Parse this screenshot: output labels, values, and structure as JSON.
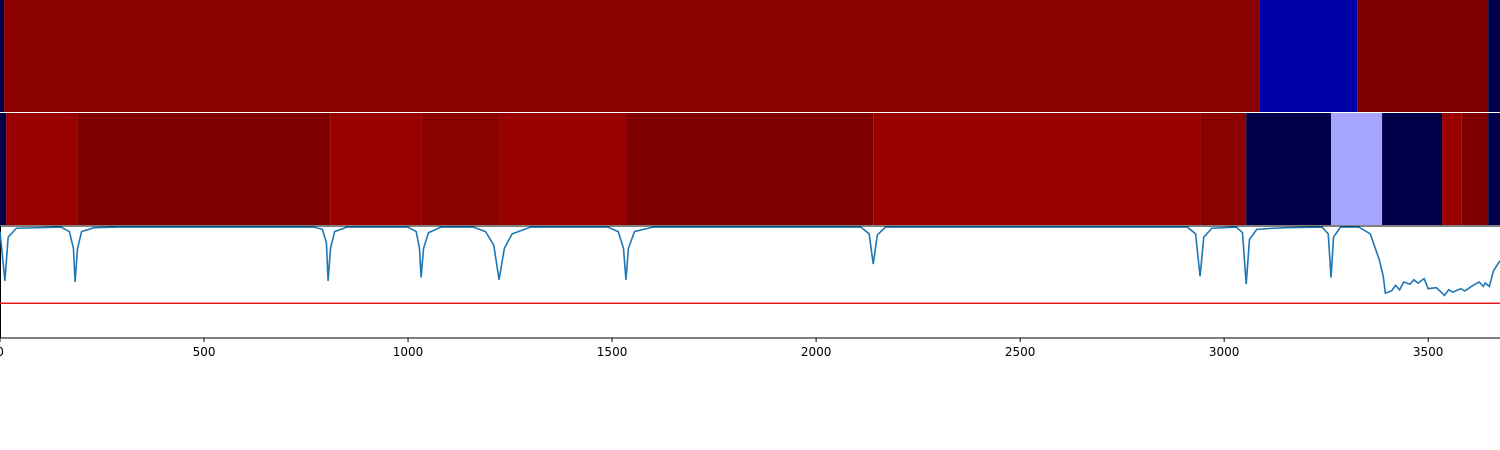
{
  "chart_data": [
    {
      "type": "strip",
      "xlim": [
        0,
        3676
      ],
      "bins": [
        0,
        10,
        3086,
        3326,
        3647,
        3676
      ],
      "colors": [
        "#00004a",
        "#8b0000",
        "#0000aa",
        "#800000",
        "#00004a"
      ]
    },
    {
      "type": "strip",
      "xlim": [
        0,
        3676
      ],
      "bins": [
        0,
        15,
        189,
        809,
        1034,
        1223,
        1534,
        2140,
        2941,
        3054,
        3262,
        3387,
        3534,
        3581,
        3647,
        3676
      ],
      "colors": [
        "#00004a",
        "#990000",
        "#7f0000",
        "#990000",
        "#8b0000",
        "#990000",
        "#7f0000",
        "#990000",
        "#8b0000",
        "#00004a",
        "#a6a6ff",
        "#00004a",
        "#990000",
        "#800000",
        "#00004a"
      ]
    },
    {
      "type": "line",
      "xlim": [
        0,
        3676
      ],
      "ylim": [
        0,
        1
      ],
      "color": "#1f77b4",
      "hline": 0.31,
      "hline_color": "#e41a1c",
      "xticks": [
        0,
        500,
        1000,
        1500,
        2000,
        2500,
        3000,
        3500
      ],
      "x": [
        0,
        12,
        20,
        40,
        150,
        170,
        180,
        184,
        190,
        200,
        230,
        290,
        770,
        790,
        800,
        804,
        810,
        820,
        850,
        1000,
        1020,
        1028,
        1032,
        1038,
        1050,
        1080,
        1160,
        1190,
        1210,
        1223,
        1236,
        1255,
        1300,
        1490,
        1515,
        1528,
        1534,
        1540,
        1555,
        1600,
        2110,
        2130,
        2140,
        2150,
        2170,
        2910,
        2930,
        2941,
        2950,
        2970,
        3030,
        3045,
        3054,
        3062,
        3080,
        3120,
        3150,
        3240,
        3255,
        3262,
        3268,
        3285,
        3330,
        3358,
        3380,
        3390,
        3395,
        3410,
        3420,
        3430,
        3440,
        3455,
        3465,
        3475,
        3490,
        3500,
        3520,
        3540,
        3550,
        3560,
        3580,
        3590,
        3610,
        3625,
        3635,
        3640,
        3650,
        3660,
        3676
      ],
      "values": [
        0.95,
        0.51,
        0.9,
        0.98,
        0.99,
        0.95,
        0.8,
        0.5,
        0.8,
        0.95,
        0.985,
        0.99,
        0.99,
        0.97,
        0.85,
        0.51,
        0.8,
        0.95,
        0.99,
        0.99,
        0.95,
        0.8,
        0.54,
        0.8,
        0.94,
        0.99,
        0.99,
        0.95,
        0.83,
        0.52,
        0.8,
        0.93,
        0.99,
        0.99,
        0.95,
        0.8,
        0.52,
        0.8,
        0.95,
        0.99,
        0.99,
        0.93,
        0.66,
        0.92,
        0.99,
        0.99,
        0.93,
        0.55,
        0.9,
        0.98,
        0.99,
        0.94,
        0.48,
        0.88,
        0.97,
        0.98,
        0.985,
        0.99,
        0.93,
        0.54,
        0.9,
        0.99,
        0.99,
        0.93,
        0.7,
        0.55,
        0.4,
        0.42,
        0.47,
        0.43,
        0.5,
        0.48,
        0.52,
        0.49,
        0.53,
        0.44,
        0.45,
        0.38,
        0.43,
        0.41,
        0.44,
        0.42,
        0.47,
        0.5,
        0.46,
        0.49,
        0.46,
        0.6,
        0.69
      ]
    }
  ]
}
